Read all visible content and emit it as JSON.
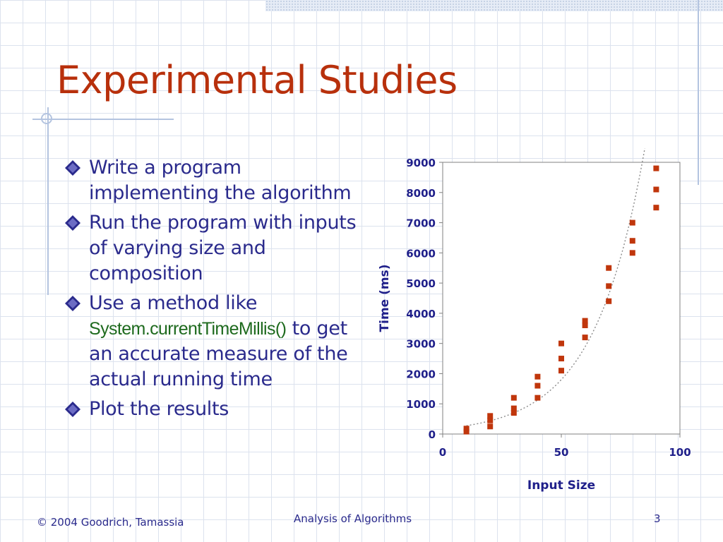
{
  "slide": {
    "title": "Experimental Studies",
    "bullets": [
      "Write a program implementing the algorithm",
      "Run the program with inputs of varying size and composition",
      {
        "before": "Use a method like",
        "code": "System.currentTimeMillis()",
        "after": "to get an accurate measure of the actual running time"
      },
      "Plot the results"
    ],
    "bullet_icon": "diamond-bullet-icon",
    "colors": {
      "title": "#b8300c",
      "body_text": "#2a2a8c",
      "code_text": "#1e6a1e",
      "marker": "#c0360c",
      "axis_text": "#1f1f8a"
    }
  },
  "footer": {
    "copyright": "© 2004 Goodrich, Tamassia",
    "course": "Analysis of Algorithms",
    "page_number": "3"
  },
  "chart_data": {
    "type": "scatter",
    "title": "",
    "xlabel": "Input Size",
    "ylabel": "Time (ms)",
    "xlim": [
      0,
      100
    ],
    "ylim": [
      0,
      9000
    ],
    "x_ticks": [
      0,
      50,
      100
    ],
    "y_ticks": [
      0,
      1000,
      2000,
      3000,
      4000,
      5000,
      6000,
      7000,
      8000,
      9000
    ],
    "grid": false,
    "legend": "none",
    "trendline": "dotted exponential fit",
    "points": [
      {
        "x": 10,
        "y": 80
      },
      {
        "x": 10,
        "y": 180
      },
      {
        "x": 20,
        "y": 250
      },
      {
        "x": 20,
        "y": 450
      },
      {
        "x": 20,
        "y": 600
      },
      {
        "x": 30,
        "y": 700
      },
      {
        "x": 30,
        "y": 850
      },
      {
        "x": 30,
        "y": 1200
      },
      {
        "x": 40,
        "y": 1200
      },
      {
        "x": 40,
        "y": 1600
      },
      {
        "x": 40,
        "y": 1900
      },
      {
        "x": 50,
        "y": 2100
      },
      {
        "x": 50,
        "y": 2500
      },
      {
        "x": 50,
        "y": 3000
      },
      {
        "x": 60,
        "y": 3200
      },
      {
        "x": 60,
        "y": 3600
      },
      {
        "x": 60,
        "y": 3750
      },
      {
        "x": 70,
        "y": 4400
      },
      {
        "x": 70,
        "y": 4900
      },
      {
        "x": 70,
        "y": 5500
      },
      {
        "x": 80,
        "y": 6000
      },
      {
        "x": 80,
        "y": 6400
      },
      {
        "x": 80,
        "y": 7000
      },
      {
        "x": 90,
        "y": 7500
      },
      {
        "x": 90,
        "y": 8100
      },
      {
        "x": 90,
        "y": 8800
      }
    ]
  }
}
